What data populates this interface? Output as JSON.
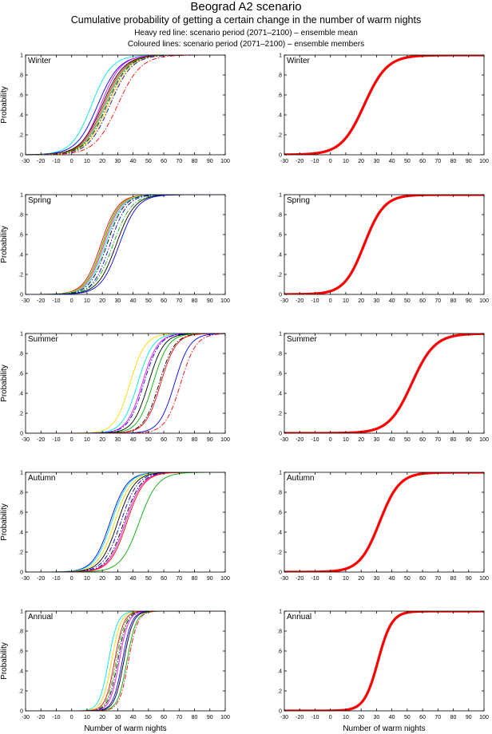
{
  "header": {
    "title": "Beograd A2 scenario",
    "subtitle": "Cumulative probability of getting a certain change in the number of warm nights",
    "legend_heavy": "Heavy red line: scenario period (2071–2100) – ensemble mean",
    "legend_coloured": "Coloured lines: scenario period (2071–2100) – ensemble members"
  },
  "chart_data": [
    {
      "type": "line",
      "panel": "ensemble-members",
      "season_label": "Winter",
      "ylabel": "Probability",
      "xlabel": "",
      "xlim": [
        -30,
        100
      ],
      "ylim": [
        0,
        1
      ],
      "xticks": [
        -30,
        -20,
        -10,
        0,
        10,
        20,
        30,
        40,
        50,
        60,
        70,
        80,
        90,
        100
      ],
      "yticks": [
        0,
        0.2,
        0.4,
        0.6,
        0.8,
        1
      ],
      "curve_form": "logistic cumulative distribution; median = 50% crossing, spread = logistic scale in nights",
      "series": [
        {
          "color": "#00e5e5",
          "style": "solid",
          "median": 13,
          "spread": 6.5
        },
        {
          "color": "#0000ff",
          "style": "solid",
          "median": 17,
          "spread": 7
        },
        {
          "color": "#ff00ff",
          "style": "solid",
          "median": 19,
          "spread": 6.5
        },
        {
          "color": "#000000",
          "style": "solid",
          "median": 20,
          "spread": 7
        },
        {
          "color": "#ff0000",
          "style": "solid",
          "median": 21,
          "spread": 7
        },
        {
          "color": "#00b000",
          "style": "solid",
          "median": 22,
          "spread": 7
        },
        {
          "color": "#000000",
          "style": "dashdot",
          "median": 23,
          "spread": 7
        },
        {
          "color": "#ffd700",
          "style": "solid",
          "median": 24,
          "spread": 7
        },
        {
          "color": "#0000ff",
          "style": "dashdot",
          "median": 25,
          "spread": 7
        },
        {
          "color": "#ff0000",
          "style": "dashdot",
          "median": 30,
          "spread": 7.5
        }
      ]
    },
    {
      "type": "line",
      "panel": "ensemble-mean",
      "season_label": "Winter",
      "ylabel": "",
      "xlabel": "",
      "xlim": [
        -30,
        100
      ],
      "ylim": [
        0,
        1
      ],
      "xticks": [
        -30,
        -20,
        -10,
        0,
        10,
        20,
        30,
        40,
        50,
        60,
        70,
        80,
        90,
        100
      ],
      "yticks": [
        0,
        0.2,
        0.4,
        0.6,
        0.8,
        1
      ],
      "series": [
        {
          "color": "#ff0000",
          "style": "heavy",
          "median": 22,
          "spread": 7.5
        }
      ]
    },
    {
      "type": "line",
      "panel": "ensemble-members",
      "season_label": "Spring",
      "ylabel": "Probability",
      "xlabel": "",
      "xlim": [
        -30,
        100
      ],
      "ylim": [
        0,
        1
      ],
      "xticks": [
        -30,
        -20,
        -10,
        0,
        10,
        20,
        30,
        40,
        50,
        60,
        70,
        80,
        90,
        100
      ],
      "yticks": [
        0,
        0.2,
        0.4,
        0.6,
        0.8,
        1
      ],
      "series": [
        {
          "color": "#ff0000",
          "style": "solid",
          "median": 19,
          "spread": 5.5
        },
        {
          "color": "#00b000",
          "style": "solid",
          "median": 20,
          "spread": 5.5
        },
        {
          "color": "#ff00ff",
          "style": "solid",
          "median": 21,
          "spread": 5.5
        },
        {
          "color": "#ffd700",
          "style": "solid",
          "median": 20.5,
          "spread": 5.5
        },
        {
          "color": "#00e5e5",
          "style": "solid",
          "median": 22,
          "spread": 5.5
        },
        {
          "color": "#000000",
          "style": "dashdot",
          "median": 23,
          "spread": 5.5
        },
        {
          "color": "#0000ff",
          "style": "dashdot",
          "median": 25,
          "spread": 5.5
        },
        {
          "color": "#00b000",
          "style": "dashdot",
          "median": 27,
          "spread": 6
        },
        {
          "color": "#000000",
          "style": "solid",
          "median": 29,
          "spread": 6
        },
        {
          "color": "#0000ff",
          "style": "solid",
          "median": 31,
          "spread": 6
        }
      ]
    },
    {
      "type": "line",
      "panel": "ensemble-mean",
      "season_label": "Spring",
      "ylabel": "",
      "xlabel": "",
      "xlim": [
        -30,
        100
      ],
      "ylim": [
        0,
        1
      ],
      "xticks": [
        -30,
        -20,
        -10,
        0,
        10,
        20,
        30,
        40,
        50,
        60,
        70,
        80,
        90,
        100
      ],
      "yticks": [
        0,
        0.2,
        0.4,
        0.6,
        0.8,
        1
      ],
      "series": [
        {
          "color": "#ff0000",
          "style": "heavy",
          "median": 22,
          "spread": 6.5
        }
      ]
    },
    {
      "type": "line",
      "panel": "ensemble-members",
      "season_label": "Summer",
      "ylabel": "Probability",
      "xlabel": "",
      "xlim": [
        -30,
        100
      ],
      "ylim": [
        0,
        1
      ],
      "xticks": [
        -30,
        -20,
        -10,
        0,
        10,
        20,
        30,
        40,
        50,
        60,
        70,
        80,
        90,
        100
      ],
      "yticks": [
        0,
        0.2,
        0.4,
        0.6,
        0.8,
        1
      ],
      "series": [
        {
          "color": "#ffd700",
          "style": "solid",
          "median": 38,
          "spread": 5
        },
        {
          "color": "#00e5e5",
          "style": "solid",
          "median": 43,
          "spread": 5
        },
        {
          "color": "#ff00ff",
          "style": "solid",
          "median": 46,
          "spread": 5
        },
        {
          "color": "#0000ff",
          "style": "dashdot",
          "median": 47,
          "spread": 5
        },
        {
          "color": "#000000",
          "style": "solid",
          "median": 50,
          "spread": 5
        },
        {
          "color": "#00b000",
          "style": "solid",
          "median": 53,
          "spread": 5
        },
        {
          "color": "#000000",
          "style": "dashdot",
          "median": 57,
          "spread": 5
        },
        {
          "color": "#ff0000",
          "style": "solid",
          "median": 58,
          "spread": 5
        },
        {
          "color": "#0000ff",
          "style": "solid",
          "median": 67,
          "spread": 5
        },
        {
          "color": "#ff0000",
          "style": "dashdot",
          "median": 71,
          "spread": 5
        }
      ]
    },
    {
      "type": "line",
      "panel": "ensemble-mean",
      "season_label": "Summer",
      "ylabel": "",
      "xlabel": "",
      "xlim": [
        -30,
        100
      ],
      "ylim": [
        0,
        1
      ],
      "xticks": [
        -30,
        -20,
        -10,
        0,
        10,
        20,
        30,
        40,
        50,
        60,
        70,
        80,
        90,
        100
      ],
      "yticks": [
        0,
        0.2,
        0.4,
        0.6,
        0.8,
        1
      ],
      "series": [
        {
          "color": "#ff0000",
          "style": "heavy",
          "median": 53,
          "spread": 7.5
        }
      ]
    },
    {
      "type": "line",
      "panel": "ensemble-members",
      "season_label": "Autumn",
      "ylabel": "Probability",
      "xlabel": "",
      "xlim": [
        -30,
        100
      ],
      "ylim": [
        0,
        1
      ],
      "xticks": [
        -30,
        -20,
        -10,
        0,
        10,
        20,
        30,
        40,
        50,
        60,
        70,
        80,
        90,
        100
      ],
      "yticks": [
        0,
        0.2,
        0.4,
        0.6,
        0.8,
        1
      ],
      "series": [
        {
          "color": "#0000ff",
          "style": "solid",
          "median": 25,
          "spread": 5.5
        },
        {
          "color": "#00e5e5",
          "style": "solid",
          "median": 26,
          "spread": 5.5
        },
        {
          "color": "#ffd700",
          "style": "solid",
          "median": 28,
          "spread": 5.5
        },
        {
          "color": "#000000",
          "style": "solid",
          "median": 30,
          "spread": 5.5
        },
        {
          "color": "#0000ff",
          "style": "dashdot",
          "median": 32,
          "spread": 5.5
        },
        {
          "color": "#000000",
          "style": "dashdot",
          "median": 34,
          "spread": 5.5
        },
        {
          "color": "#ff00ff",
          "style": "solid",
          "median": 35,
          "spread": 5.5
        },
        {
          "color": "#ff0000",
          "style": "solid",
          "median": 36,
          "spread": 5.5
        },
        {
          "color": "#00b000",
          "style": "solid",
          "median": 44,
          "spread": 6
        }
      ]
    },
    {
      "type": "line",
      "panel": "ensemble-mean",
      "season_label": "Autumn",
      "ylabel": "",
      "xlabel": "",
      "xlim": [
        -30,
        100
      ],
      "ylim": [
        0,
        1
      ],
      "xticks": [
        -30,
        -20,
        -10,
        0,
        10,
        20,
        30,
        40,
        50,
        60,
        70,
        80,
        90,
        100
      ],
      "yticks": [
        0,
        0.2,
        0.4,
        0.6,
        0.8,
        1
      ],
      "series": [
        {
          "color": "#ff0000",
          "style": "heavy",
          "median": 32,
          "spread": 6.5
        }
      ]
    },
    {
      "type": "line",
      "panel": "ensemble-members",
      "season_label": "Annual",
      "ylabel": "Probability",
      "xlabel": "Number of warm nights",
      "xlim": [
        -30,
        100
      ],
      "ylim": [
        0,
        1
      ],
      "xticks": [
        -30,
        -20,
        -10,
        0,
        10,
        20,
        30,
        40,
        50,
        60,
        70,
        80,
        90,
        100
      ],
      "yticks": [
        0,
        0.2,
        0.4,
        0.6,
        0.8,
        1
      ],
      "series": [
        {
          "color": "#00e5e5",
          "style": "solid",
          "median": 24,
          "spread": 3
        },
        {
          "color": "#ffd700",
          "style": "solid",
          "median": 26,
          "spread": 3
        },
        {
          "color": "#ff0000",
          "style": "solid",
          "median": 28,
          "spread": 3
        },
        {
          "color": "#00b000",
          "style": "dashdot",
          "median": 29,
          "spread": 3
        },
        {
          "color": "#000000",
          "style": "dashdot",
          "median": 30,
          "spread": 3
        },
        {
          "color": "#ff00ff",
          "style": "solid",
          "median": 31,
          "spread": 3
        },
        {
          "color": "#0000ff",
          "style": "solid",
          "median": 33,
          "spread": 3
        },
        {
          "color": "#000000",
          "style": "solid",
          "median": 34,
          "spread": 3
        },
        {
          "color": "#00b000",
          "style": "solid",
          "median": 36,
          "spread": 3
        },
        {
          "color": "#ff0000",
          "style": "dashdot",
          "median": 37,
          "spread": 3
        }
      ]
    },
    {
      "type": "line",
      "panel": "ensemble-mean",
      "season_label": "Annual",
      "ylabel": "",
      "xlabel": "Number of warm nights",
      "xlim": [
        -30,
        100
      ],
      "ylim": [
        0,
        1
      ],
      "xticks": [
        -30,
        -20,
        -10,
        0,
        10,
        20,
        30,
        40,
        50,
        60,
        70,
        80,
        90,
        100
      ],
      "yticks": [
        0,
        0.2,
        0.4,
        0.6,
        0.8,
        1
      ],
      "series": [
        {
          "color": "#ff0000",
          "style": "heavy",
          "median": 31,
          "spread": 4.5
        }
      ]
    }
  ]
}
